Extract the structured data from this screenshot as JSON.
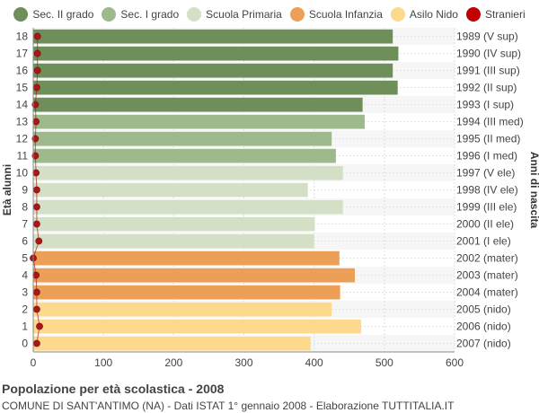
{
  "chart_data": {
    "type": "bar",
    "orientation": "horizontal",
    "title": "Popolazione per età scolastica - 2008",
    "subtitle": "COMUNE DI SANT'ANTIMO (NA) - Dati ISTAT 1° gennaio 2008 - Elaborazione TUTTITALIA.IT",
    "ylabel": "Età alunni",
    "ylabel_right": "Anni di nascita",
    "xlim": [
      0,
      600
    ],
    "x_ticks": [
      0,
      100,
      200,
      300,
      400,
      500,
      600
    ],
    "grid": true,
    "legend_position": "top",
    "legend": [
      {
        "name": "Sec. II grado",
        "color": "#6e8e5a"
      },
      {
        "name": "Sec. I grado",
        "color": "#9eba8c"
      },
      {
        "name": "Scuola Primaria",
        "color": "#d4e0c5"
      },
      {
        "name": "Scuola Infanzia",
        "color": "#ec9f56"
      },
      {
        "name": "Asilo Nido",
        "color": "#fdd98e"
      },
      {
        "name": "Stranieri",
        "color": "#c00000"
      }
    ],
    "rows": [
      {
        "age": "18",
        "birth": "1989 (V sup)",
        "value": 512,
        "stranieri": 6,
        "group": 0
      },
      {
        "age": "17",
        "birth": "1990 (IV sup)",
        "value": 520,
        "stranieri": 6,
        "group": 0
      },
      {
        "age": "16",
        "birth": "1991 (III sup)",
        "value": 512,
        "stranieri": 6,
        "group": 0
      },
      {
        "age": "15",
        "birth": "1992 (II sup)",
        "value": 519,
        "stranieri": 5,
        "group": 0
      },
      {
        "age": "14",
        "birth": "1993 (I sup)",
        "value": 469,
        "stranieri": 3,
        "group": 0
      },
      {
        "age": "13",
        "birth": "1994 (III med)",
        "value": 472,
        "stranieri": 4,
        "group": 1
      },
      {
        "age": "12",
        "birth": "1995 (II med)",
        "value": 425,
        "stranieri": 3,
        "group": 1
      },
      {
        "age": "11",
        "birth": "1996 (I med)",
        "value": 431,
        "stranieri": 3,
        "group": 1
      },
      {
        "age": "10",
        "birth": "1997 (V ele)",
        "value": 441,
        "stranieri": 4,
        "group": 2
      },
      {
        "age": "9",
        "birth": "1998 (IV ele)",
        "value": 391,
        "stranieri": 5,
        "group": 2
      },
      {
        "age": "8",
        "birth": "1999 (III ele)",
        "value": 441,
        "stranieri": 5,
        "group": 2
      },
      {
        "age": "7",
        "birth": "2000 (II ele)",
        "value": 401,
        "stranieri": 5,
        "group": 2
      },
      {
        "age": "6",
        "birth": "2001 (I ele)",
        "value": 400,
        "stranieri": 8,
        "group": 2
      },
      {
        "age": "5",
        "birth": "2002 (mater)",
        "value": 436,
        "stranieri": 0,
        "group": 3
      },
      {
        "age": "4",
        "birth": "2003 (mater)",
        "value": 458,
        "stranieri": 4,
        "group": 3
      },
      {
        "age": "3",
        "birth": "2004 (mater)",
        "value": 437,
        "stranieri": 5,
        "group": 3
      },
      {
        "age": "2",
        "birth": "2005 (nido)",
        "value": 425,
        "stranieri": 5,
        "group": 4
      },
      {
        "age": "1",
        "birth": "2006 (nido)",
        "value": 467,
        "stranieri": 9,
        "group": 4
      },
      {
        "age": "0",
        "birth": "2007 (nido)",
        "value": 395,
        "stranieri": 5,
        "group": 4
      }
    ]
  }
}
